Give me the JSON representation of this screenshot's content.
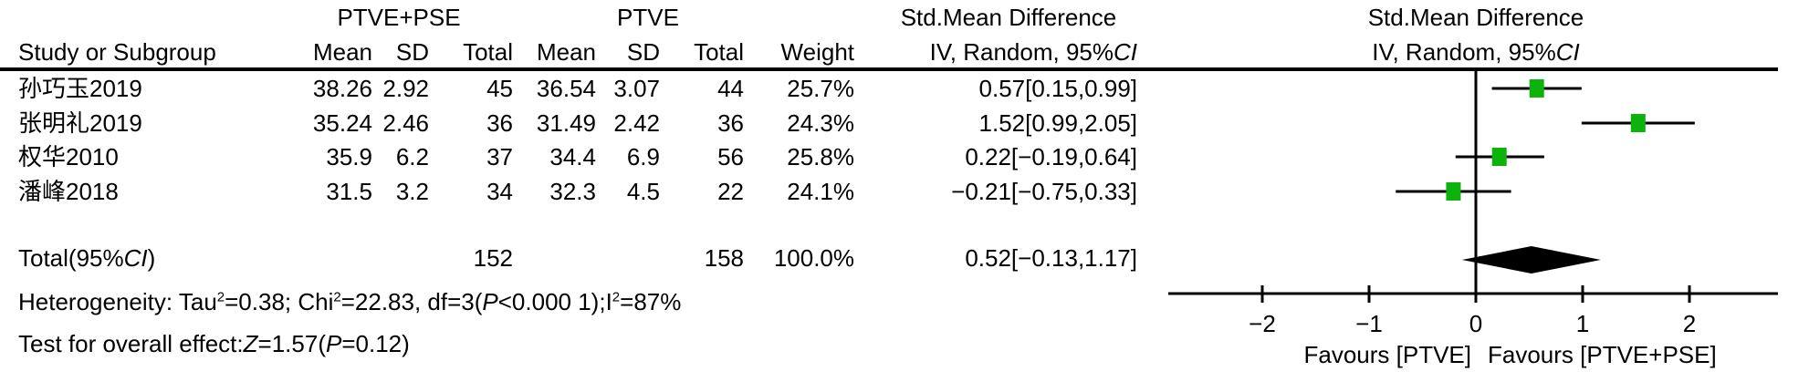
{
  "figure": {
    "group1_header": "PTVE+PSE",
    "group2_header": "PTVE",
    "smd_header_text_col": "Std.Mean Difference",
    "smd_header_plot_col": "Std.Mean Difference",
    "iv_header_prefix": "IV, Random, 95%",
    "iv_header_ci": "CI"
  },
  "columns": {
    "study": "Study or Subgroup",
    "mean": "Mean",
    "sd": "SD",
    "total": "Total",
    "weight": "Weight"
  },
  "rows": [
    {
      "study": "孙巧玉2019",
      "mean1": "38.26",
      "sd1": "2.92",
      "total1": "45",
      "mean2": "36.54",
      "sd2": "3.07",
      "total2": "44",
      "weight": "25.7%",
      "ci": "0.57[0.15,0.99]"
    },
    {
      "study": "张明礼2019",
      "mean1": "35.24",
      "sd1": "2.46",
      "total1": "36",
      "mean2": "31.49",
      "sd2": "2.42",
      "total2": "36",
      "weight": "24.3%",
      "ci": "1.52[0.99,2.05]"
    },
    {
      "study": "权华2010",
      "mean1": "35.9",
      "sd1": "6.2",
      "total1": "37",
      "mean2": "34.4",
      "sd2": "6.9",
      "total2": "56",
      "weight": "25.8%",
      "ci": "0.22[−0.19,0.64]"
    },
    {
      "study": "潘峰2018",
      "mean1": "31.5",
      "sd1": "3.2",
      "total1": "34",
      "mean2": "32.3",
      "sd2": "4.5",
      "total2": "22",
      "weight": "24.1%",
      "ci": "−0.21[−0.75,0.33]"
    }
  ],
  "total_row": {
    "label_prefix": "Total(95%",
    "label_ci": "CI",
    "label_suffix": ")",
    "total1": "152",
    "total2": "158",
    "weight": "100.0%",
    "ci": "0.52[−0.13,1.17]"
  },
  "heterogeneity": {
    "p1": "Heterogeneity: Tau",
    "s1": "2",
    "p2": "=0.38; Chi",
    "s2": "2",
    "p3": "=22.83, df=3(",
    "i1": "P",
    "p4": "<0.000 1);I",
    "s3": "2",
    "p5": "=87%"
  },
  "overall_effect": {
    "p1": "Test for overall effect:",
    "i1": "Z",
    "p2": "=1.57(",
    "i2": "P",
    "p3": "=0.12)"
  },
  "axis": {
    "tick_labels": [
      "−2",
      "−1",
      "0",
      "1",
      "2"
    ],
    "favours_left": "Favours [PTVE]",
    "favours_right": "Favours [PTVE+PSE]"
  },
  "chart_data": {
    "type": "forest",
    "effect_measure": "Std. Mean Difference, IV, Random, 95% CI",
    "groups": [
      "PTVE+PSE",
      "PTVE"
    ],
    "x_ticks": [
      -2,
      -1,
      0,
      1,
      2
    ],
    "xlim": [
      -2.88,
      2.83
    ],
    "studies": [
      {
        "name": "孙巧玉2019",
        "mean1": 38.26,
        "sd1": 2.92,
        "n1": 45,
        "mean2": 36.54,
        "sd2": 3.07,
        "n2": 44,
        "weight_pct": 25.7,
        "smd": 0.57,
        "ci_low": 0.15,
        "ci_high": 0.99
      },
      {
        "name": "张明礼2019",
        "mean1": 35.24,
        "sd1": 2.46,
        "n1": 36,
        "mean2": 31.49,
        "sd2": 2.42,
        "n2": 36,
        "weight_pct": 24.3,
        "smd": 1.52,
        "ci_low": 0.99,
        "ci_high": 2.05
      },
      {
        "name": "权华2010",
        "mean1": 35.9,
        "sd1": 6.2,
        "n1": 37,
        "mean2": 34.4,
        "sd2": 6.9,
        "n2": 56,
        "weight_pct": 25.8,
        "smd": 0.22,
        "ci_low": -0.19,
        "ci_high": 0.64
      },
      {
        "name": "潘峰2018",
        "mean1": 31.5,
        "sd1": 3.2,
        "n1": 34,
        "mean2": 32.3,
        "sd2": 4.5,
        "n2": 22,
        "weight_pct": 24.1,
        "smd": -0.21,
        "ci_low": -0.75,
        "ci_high": 0.33
      }
    ],
    "total": {
      "name": "Total(95%CI)",
      "n1": 152,
      "n2": 158,
      "weight_pct": 100.0,
      "smd": 0.52,
      "ci_low": -0.13,
      "ci_high": 1.17
    },
    "heterogeneity": "Tau²=0.38; Chi²=22.83, df=3(P<0.000 1); I²=87%",
    "overall_effect": "Z=1.57(P=0.12)",
    "favours": [
      "Favours [PTVE]",
      "Favours [PTVE+PSE]"
    ],
    "marker_color": "#0db30d",
    "axis_color": "#000000"
  }
}
